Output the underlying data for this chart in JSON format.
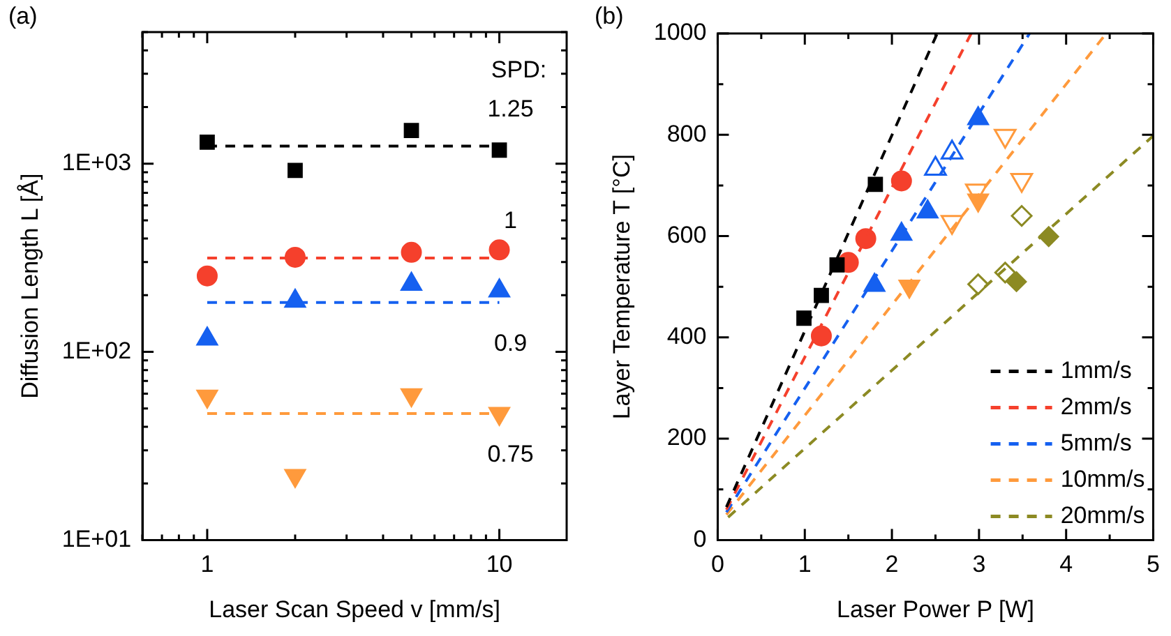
{
  "chart_data": [
    {
      "type": "scatter",
      "title": "(a)",
      "xlabel": "Laser Scan Speed v [mm/s]",
      "ylabel": "Diffusion Length L [Å]",
      "log": "xy",
      "grid": false,
      "legend": false,
      "xlim": [
        0.6,
        17
      ],
      "xticks": [
        {
          "value": 0.6,
          "label": null
        },
        {
          "value": 0.7,
          "label": null
        },
        {
          "value": 0.8,
          "label": null
        },
        {
          "value": 0.9,
          "label": null
        },
        1,
        {
          "value": 2,
          "label": null
        },
        {
          "value": 3,
          "label": null
        },
        {
          "value": 4,
          "label": null
        },
        {
          "value": 5,
          "label": null
        },
        {
          "value": 6,
          "label": null
        },
        {
          "value": 7,
          "label": null
        },
        {
          "value": 8,
          "label": null
        },
        {
          "value": 9,
          "label": null
        },
        10
      ],
      "ylim": [
        10,
        5000
      ],
      "yticks": [
        {
          "value": 10,
          "label": "1E+01"
        },
        {
          "value": 20,
          "label": null
        },
        {
          "value": 30,
          "label": null
        },
        {
          "value": 40,
          "label": null
        },
        {
          "value": 50,
          "label": null
        },
        {
          "value": 60,
          "label": null
        },
        {
          "value": 70,
          "label": null
        },
        {
          "value": 80,
          "label": null
        },
        {
          "value": 90,
          "label": null
        },
        {
          "value": 100,
          "label": "1E+02"
        },
        {
          "value": 200,
          "label": null
        },
        {
          "value": 300,
          "label": null
        },
        {
          "value": 400,
          "label": null
        },
        {
          "value": 500,
          "label": null
        },
        {
          "value": 600,
          "label": null
        },
        {
          "value": 700,
          "label": null
        },
        {
          "value": 800,
          "label": null
        },
        {
          "value": 900,
          "label": null
        },
        {
          "value": 1000,
          "label": "1E+03"
        },
        {
          "value": 2000,
          "label": null
        },
        {
          "value": 3000,
          "label": null
        },
        {
          "value": 4000,
          "label": null
        },
        {
          "value": 5000,
          "label": null
        }
      ],
      "annotations": [
        "SPD:",
        "1.25",
        "1",
        "0.9",
        "0.75"
      ],
      "series": [
        {
          "type": "scatter",
          "marker": "square",
          "color": "#000000",
          "x": [
            1,
            2,
            5,
            10
          ],
          "values": [
            1300,
            920,
            1500,
            1180
          ]
        },
        {
          "type": "scatter",
          "marker": "circle",
          "color": "#f5402c",
          "x": [
            1,
            2,
            5,
            10
          ],
          "values": [
            253,
            318,
            338,
            348
          ]
        },
        {
          "type": "scatter",
          "marker": "triangle",
          "color": "#1560f0",
          "x": [
            1,
            2,
            5,
            10
          ],
          "values": [
            117,
            186,
            229,
            211
          ]
        },
        {
          "type": "scatter",
          "marker": "triangle-down",
          "color": "#ff9a3c",
          "x": [
            1,
            2,
            5,
            10
          ],
          "values": [
            58,
            22,
            59,
            47
          ]
        },
        {
          "type": "line",
          "marker": "none",
          "line_style": "dashed",
          "color": "#000000",
          "x": [
            1,
            10
          ],
          "values": [
            1240,
            1240
          ]
        },
        {
          "type": "line",
          "marker": "none",
          "line_style": "dashed",
          "color": "#f5402c",
          "x": [
            1,
            10
          ],
          "values": [
            315,
            315
          ]
        },
        {
          "type": "line",
          "marker": "none",
          "line_style": "dashed",
          "color": "#1560f0",
          "x": [
            1,
            10
          ],
          "values": [
            183,
            183
          ]
        },
        {
          "type": "line",
          "marker": "none",
          "line_style": "dashed",
          "color": "#ff9a3c",
          "x": [
            1,
            10
          ],
          "values": [
            47,
            47
          ]
        }
      ]
    },
    {
      "type": "scatter",
      "title": "(b)",
      "xlabel": "Laser Power P [W]",
      "ylabel": "Layer Temperature T [°C]",
      "grid": false,
      "legend": "bottom right",
      "xlim": [
        0,
        5
      ],
      "xticks": [
        0,
        {
          "value": 0.5,
          "label": null
        },
        1,
        {
          "value": 1.5,
          "label": null
        },
        2,
        {
          "value": 2.5,
          "label": null
        },
        3,
        {
          "value": 3.5,
          "label": null
        },
        4,
        {
          "value": 4.5,
          "label": null
        },
        5
      ],
      "ylim": [
        0,
        1000
      ],
      "yticks": [
        0,
        {
          "value": 100,
          "label": null
        },
        200,
        {
          "value": 300,
          "label": null
        },
        400,
        {
          "value": 500,
          "label": null
        },
        600,
        {
          "value": 700,
          "label": null
        },
        800,
        {
          "value": 900,
          "label": null
        },
        1000
      ],
      "series": [
        {
          "type": "line",
          "name": "1mm/s",
          "marker": "none",
          "line_style": "dashed",
          "color": "#000000",
          "x": [
            0.1,
            2.52
          ],
          "values": [
            65,
            1000
          ]
        },
        {
          "type": "line",
          "name": "2mm/s",
          "marker": "none",
          "line_style": "dashed",
          "color": "#f5402c",
          "x": [
            0.1,
            2.91
          ],
          "values": [
            60,
            1000
          ]
        },
        {
          "type": "line",
          "name": "5mm/s",
          "marker": "none",
          "line_style": "dashed",
          "color": "#1560f0",
          "x": [
            0.1,
            3.58
          ],
          "values": [
            55,
            1000
          ]
        },
        {
          "type": "line",
          "name": "10mm/s",
          "marker": "none",
          "line_style": "dashed",
          "color": "#ff9a3c",
          "x": [
            0.1,
            4.46
          ],
          "values": [
            50,
            1000
          ]
        },
        {
          "type": "line",
          "name": "20mm/s",
          "marker": "none",
          "line_style": "dashed",
          "color": "#8c8a23",
          "x": [
            0.12,
            5
          ],
          "values": [
            45,
            798
          ]
        },
        {
          "type": "scatter",
          "marker": "square",
          "color": "#000000",
          "x": [
            0.99,
            1.19,
            1.37,
            1.81
          ],
          "values": [
            438,
            483,
            543,
            702
          ]
        },
        {
          "type": "scatter",
          "marker": "circle",
          "color": "#f5402c",
          "x": [
            1.19,
            1.5,
            1.7,
            2.11
          ],
          "values": [
            403,
            548,
            595,
            709
          ]
        },
        {
          "type": "scatter",
          "marker": "triangle",
          "color": "#1560f0",
          "x": [
            1.8,
            2.11,
            2.41,
            2.99
          ],
          "values": [
            503,
            604,
            648,
            832
          ]
        },
        {
          "type": "scatter",
          "marker": "triangle-open",
          "color": "#1560f0",
          "x": [
            2.5,
            2.69
          ],
          "values": [
            733,
            765
          ]
        },
        {
          "type": "scatter",
          "marker": "triangle-down",
          "color": "#ff9a3c",
          "x": [
            2.2,
            2.99
          ],
          "values": [
            501,
            671
          ]
        },
        {
          "type": "scatter",
          "marker": "triangle-down-open",
          "color": "#ff9a3c",
          "x": [
            2.69,
            2.97,
            3.3,
            3.49
          ],
          "values": [
            628,
            690,
            798,
            711
          ]
        },
        {
          "type": "scatter",
          "marker": "diamond",
          "color": "#8c8a23",
          "x": [
            3.43,
            3.8
          ],
          "values": [
            510,
            599
          ]
        },
        {
          "type": "scatter",
          "marker": "diamond-open",
          "color": "#8c8a23",
          "x": [
            2.99,
            3.3,
            3.49
          ],
          "values": [
            505,
            528,
            640
          ]
        }
      ]
    }
  ]
}
